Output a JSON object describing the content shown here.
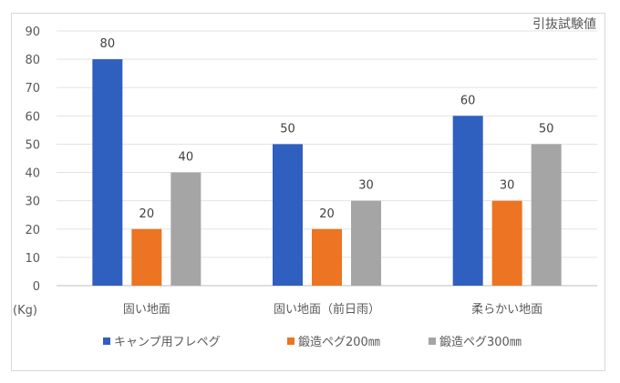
{
  "chart_data": {
    "type": "bar",
    "title": "引抜試験値",
    "ylabel": "(Kg)",
    "xlabel": "",
    "ylim": [
      0,
      90
    ],
    "yticks": [
      0,
      10,
      20,
      30,
      40,
      50,
      60,
      70,
      80,
      90
    ],
    "grid": true,
    "legend": "bottom",
    "categories": [
      "固い地面",
      "固い地面（前日雨）",
      "柔らかい地面"
    ],
    "series": [
      {
        "name": "キャンプ用フレペグ",
        "color": "#2f5fbf",
        "values": [
          80,
          50,
          60
        ]
      },
      {
        "name": "鍛造ペグ200㎜",
        "color": "#ec7422",
        "values": [
          20,
          20,
          30
        ]
      },
      {
        "name": "鍛造ペグ300㎜",
        "color": "#a5a5a5",
        "values": [
          40,
          30,
          50
        ]
      }
    ]
  }
}
